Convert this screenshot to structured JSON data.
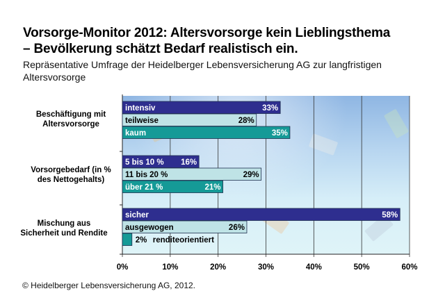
{
  "title_line1": "Vorsorge-Monitor 2012: Altersvorsorge kein Lieblingsthema",
  "title_line2": "– Bevölkerung schätzt Bedarf realistisch ein.",
  "subtitle": "Repräsentative Umfrage der Heidelberger Lebensversicherung AG zur langfristigen Altersvorsorge",
  "footer": "© Heidelberger Lebensversicherung AG, 2012.",
  "colors": {
    "dark_blue": "#2e2e8f",
    "light_cyan": "#bfe3e6",
    "teal": "#159a97"
  },
  "chart_data": {
    "type": "bar",
    "orientation": "horizontal",
    "title": "Vorsorge-Monitor 2012: Altersvorsorge kein Lieblingsthema – Bevölkerung schätzt Bedarf realistisch ein.",
    "subtitle": "Repräsentative Umfrage der Heidelberger Lebensversicherung AG zur langfristigen Altersvorsorge",
    "xlabel": "",
    "ylabel": "",
    "xlim": [
      0,
      60
    ],
    "xticks": [
      "0%",
      "10%",
      "20%",
      "30%",
      "40%",
      "50%",
      "60%"
    ],
    "grid": true,
    "legend": "none",
    "groups": [
      {
        "label_lines": [
          "Beschäftigung mit",
          "Altersvorsorge"
        ],
        "bars": [
          {
            "name": "intensiv",
            "value": 33,
            "label": "33%",
            "color": "dark_blue"
          },
          {
            "name": "teilweise",
            "value": 28,
            "label": "28%",
            "color": "light_cyan"
          },
          {
            "name": "kaum",
            "value": 35,
            "label": "35%",
            "color": "teal"
          }
        ]
      },
      {
        "label_lines": [
          "Vorsorgebedarf (in %",
          "des Nettogehalts)"
        ],
        "bars": [
          {
            "name": "5 bis 10 %",
            "value": 16,
            "label": "16%",
            "color": "dark_blue"
          },
          {
            "name": "11 bis 20 %",
            "value": 29,
            "label": "29%",
            "color": "light_cyan"
          },
          {
            "name": "über 21 %",
            "value": 21,
            "label": "21%",
            "color": "teal"
          }
        ]
      },
      {
        "label_lines": [
          "Mischung aus",
          "Sicherheit und Rendite"
        ],
        "bars": [
          {
            "name": "sicher",
            "value": 58,
            "label": "58%",
            "color": "dark_blue"
          },
          {
            "name": "ausgewogen",
            "value": 26,
            "label": "26%",
            "color": "light_cyan"
          },
          {
            "name": "renditeorientiert",
            "value": 2,
            "label": "2%",
            "color": "teal"
          }
        ]
      }
    ]
  }
}
